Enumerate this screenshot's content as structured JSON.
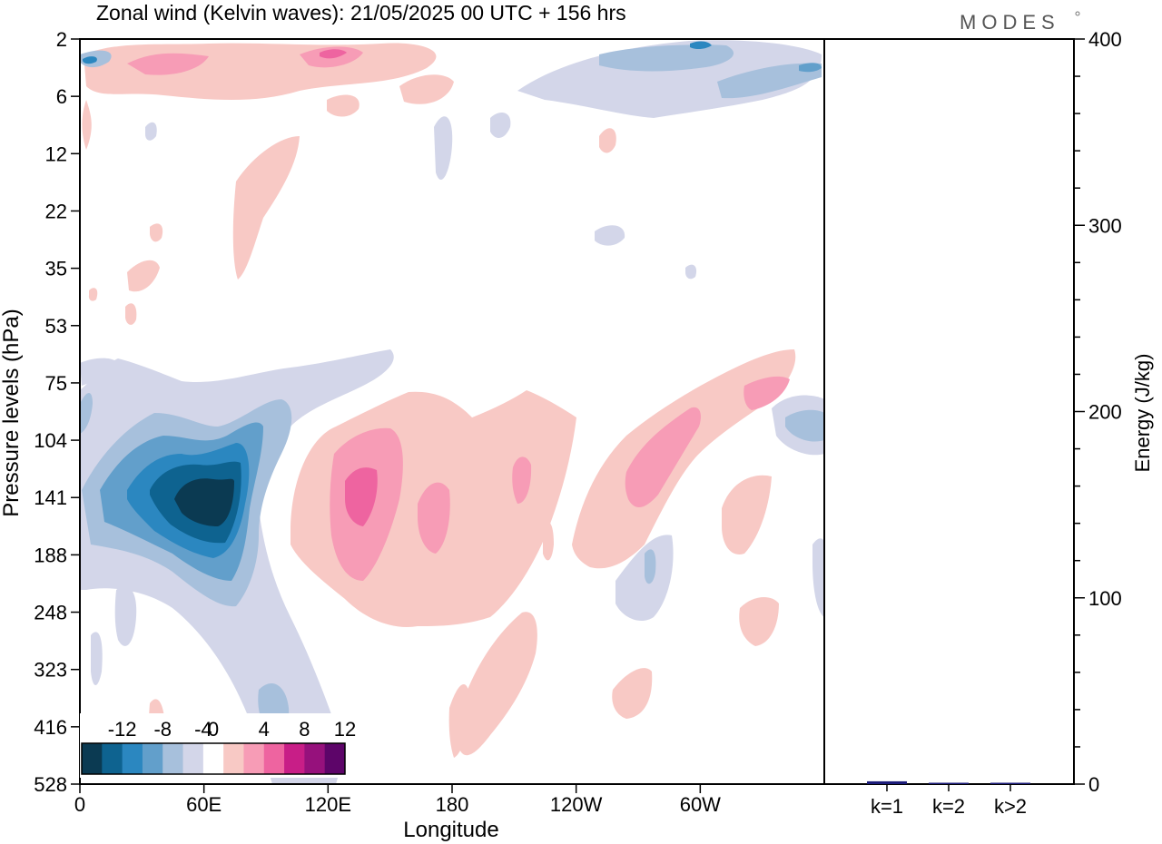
{
  "header": {
    "title": "Zonal wind (Kelvin waves):  21/05/2025  00 UTC  + 156 hrs",
    "brand": "MODES"
  },
  "chart_data": [
    {
      "type": "heatmap",
      "title": "Zonal wind (Kelvin waves):  21/05/2025  00 UTC  + 156 hrs",
      "xlabel": "Longitude",
      "ylabel": "Pressure levels (hPa)",
      "x_ticks": [
        "0",
        "60E",
        "120E",
        "180",
        "120W",
        "60W"
      ],
      "x_tick_lons": [
        0,
        60,
        120,
        180,
        240,
        300
      ],
      "xlim": [
        0,
        360
      ],
      "y_ticks": [
        "2",
        "6",
        "12",
        "22",
        "35",
        "53",
        "75",
        "104",
        "141",
        "188",
        "248",
        "323",
        "416",
        "528"
      ],
      "colorbar": {
        "labels": [
          "-12",
          "-8",
          "-4",
          "0",
          "4",
          "8",
          "12"
        ],
        "levels": [
          -14,
          -12,
          -10,
          -8,
          -6,
          -4,
          -2,
          2,
          4,
          6,
          8,
          10,
          12,
          14
        ],
        "colors": [
          "#0b3a52",
          "#0e6390",
          "#2b87c0",
          "#629fcb",
          "#a7c0dc",
          "#d3d6e9",
          "#ffffff",
          "#f8c9c5",
          "#f79cb6",
          "#ee64a0",
          "#c81e87",
          "#96117c",
          "#5d0569"
        ]
      },
      "features": [
        {
          "lon": 65,
          "level": "141",
          "value": -13
        },
        {
          "lon": 130,
          "level": "141",
          "value": 8
        },
        {
          "lon": 250,
          "level": "141",
          "value": 6
        },
        {
          "lon": 285,
          "level": "104",
          "value": 6
        }
      ]
    },
    {
      "type": "bar",
      "categories": [
        "k=1",
        "k=2",
        "k>2"
      ],
      "values": [
        1.5,
        0.5,
        0.5
      ],
      "ylabel": "Energy (J/kg)",
      "ylim": [
        0,
        400
      ],
      "y_ticks": [
        "0",
        "100",
        "200",
        "300",
        "400"
      ],
      "bar_color": "#1c1c7a"
    }
  ]
}
